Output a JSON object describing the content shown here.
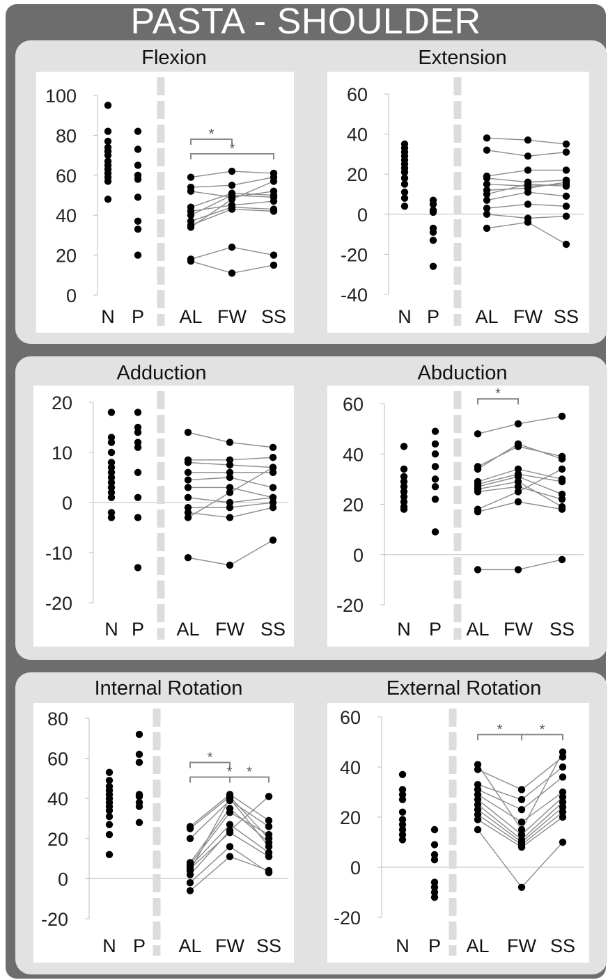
{
  "title": "PASTA - SHOULDER",
  "chart_data": [
    {
      "type": "scatter",
      "title": "Flexion",
      "ylim": [
        0,
        100
      ],
      "yticks": [
        100,
        80,
        60,
        40,
        20,
        0
      ],
      "categories": [
        "N",
        "P",
        "AL",
        "FW",
        "SS"
      ],
      "groups": {
        "N": [
          95,
          82,
          77,
          74,
          72,
          70,
          67,
          65,
          63,
          61,
          59,
          57,
          48
        ],
        "P": [
          82,
          73,
          65,
          60,
          58,
          49,
          37,
          33,
          20
        ]
      },
      "paired": [
        [
          59,
          62,
          61
        ],
        [
          54,
          55,
          59
        ],
        [
          52,
          49,
          52
        ],
        [
          44,
          51,
          50
        ],
        [
          42,
          45,
          47
        ],
        [
          40,
          50,
          49
        ],
        [
          37,
          44,
          43
        ],
        [
          35,
          43,
          42
        ],
        [
          34,
          48,
          57
        ],
        [
          18,
          24,
          20
        ],
        [
          17,
          11,
          15
        ]
      ],
      "significance": [
        {
          "from": "AL",
          "to": "FW",
          "label": "*"
        },
        {
          "from": "AL",
          "to": "SS",
          "label": "*"
        }
      ]
    },
    {
      "type": "scatter",
      "title": "Extension",
      "ylim": [
        -40,
        60
      ],
      "yticks": [
        60,
        40,
        20,
        0,
        -20,
        -40
      ],
      "zero_line": true,
      "categories": [
        "N",
        "P",
        "AL",
        "FW",
        "SS"
      ],
      "groups": {
        "N": [
          35,
          33,
          31,
          29,
          27,
          25,
          23,
          21,
          18,
          15,
          11,
          8,
          4
        ],
        "P": [
          7,
          5,
          2,
          1,
          -7,
          -9,
          -13,
          -26
        ]
      },
      "paired": [
        [
          38,
          37,
          35
        ],
        [
          32,
          29,
          31
        ],
        [
          19,
          22,
          22
        ],
        [
          18,
          16,
          17
        ],
        [
          15,
          14,
          15
        ],
        [
          12,
          13,
          16
        ],
        [
          10,
          15,
          14
        ],
        [
          7,
          11,
          9
        ],
        [
          3,
          5,
          4
        ],
        [
          0,
          -2,
          -1
        ],
        [
          -7,
          -4,
          -15
        ]
      ],
      "significance": []
    },
    {
      "type": "scatter",
      "title": "Adduction",
      "ylim": [
        -20,
        20
      ],
      "yticks": [
        20,
        10,
        0,
        -10,
        -20
      ],
      "zero_line": true,
      "categories": [
        "N",
        "P",
        "AL",
        "FW",
        "SS"
      ],
      "groups": {
        "N": [
          18,
          13,
          12,
          10,
          8,
          7,
          6,
          5,
          4,
          3,
          2,
          1,
          -2,
          -3
        ],
        "P": [
          18,
          15,
          14,
          12,
          11,
          6,
          1,
          -3,
          -13
        ]
      },
      "paired": [
        [
          14,
          12,
          11
        ],
        [
          8.5,
          8.5,
          9
        ],
        [
          8,
          7.5,
          7
        ],
        [
          6,
          6,
          6
        ],
        [
          4.5,
          5,
          3
        ],
        [
          3,
          3,
          1
        ],
        [
          1,
          0,
          1
        ],
        [
          -1,
          -1,
          0
        ],
        [
          -2,
          -3,
          -1
        ],
        [
          -3,
          2,
          7
        ],
        [
          -11,
          -12.5,
          -7.5
        ]
      ],
      "significance": []
    },
    {
      "type": "scatter",
      "title": "Abduction",
      "ylim": [
        -20,
        60
      ],
      "yticks": [
        60,
        40,
        20,
        0,
        -20
      ],
      "zero_line": true,
      "categories": [
        "N",
        "P",
        "AL",
        "FW",
        "SS"
      ],
      "groups": {
        "N": [
          43,
          34,
          31,
          29,
          27,
          25,
          23,
          21,
          19,
          18
        ],
        "P": [
          49,
          44,
          40,
          35,
          30,
          27,
          22,
          9
        ]
      },
      "paired": [
        [
          48,
          52,
          55
        ],
        [
          35,
          43,
          39
        ],
        [
          34,
          44,
          38
        ],
        [
          29,
          34,
          30
        ],
        [
          28,
          32,
          29
        ],
        [
          27,
          31,
          24
        ],
        [
          26,
          29,
          19
        ],
        [
          25,
          27,
          22
        ],
        [
          18,
          25,
          34
        ],
        [
          17,
          21,
          18
        ],
        [
          -6,
          -6,
          -2
        ]
      ],
      "significance": [
        {
          "from": "AL",
          "to": "FW",
          "label": "*"
        }
      ]
    },
    {
      "type": "scatter",
      "title": "Internal Rotation",
      "ylim": [
        -20,
        80
      ],
      "yticks": [
        80,
        60,
        40,
        20,
        0,
        -20
      ],
      "zero_line": true,
      "categories": [
        "N",
        "P",
        "AL",
        "FW",
        "SS"
      ],
      "groups": {
        "N": [
          53,
          49,
          46,
          44,
          42,
          40,
          38,
          36,
          34,
          31,
          27,
          22,
          12
        ],
        "P": [
          72,
          62,
          58,
          42,
          41,
          38,
          36,
          28
        ]
      },
      "paired": [
        [
          26,
          42,
          29
        ],
        [
          25,
          41,
          20
        ],
        [
          20,
          39,
          26
        ],
        [
          8,
          35,
          18
        ],
        [
          7,
          33,
          22
        ],
        [
          6,
          27,
          13
        ],
        [
          5,
          23,
          11
        ],
        [
          4,
          40,
          16
        ],
        [
          2,
          24,
          41
        ],
        [
          -2,
          16,
          3
        ],
        [
          -6,
          11,
          4
        ]
      ],
      "significance": [
        {
          "from": "AL",
          "to": "FW",
          "label": "*"
        },
        {
          "from": "FW",
          "to": "SS",
          "label": "*"
        },
        {
          "from": "AL",
          "to": "SS",
          "label": "*"
        }
      ]
    },
    {
      "type": "scatter",
      "title": "External Rotation",
      "ylim": [
        -20,
        60
      ],
      "yticks": [
        60,
        40,
        20,
        0,
        -20
      ],
      "zero_line": true,
      "categories": [
        "N",
        "P",
        "AL",
        "FW",
        "SS"
      ],
      "groups": {
        "N": [
          37,
          31,
          29,
          27,
          22,
          19,
          17,
          15,
          13,
          11
        ],
        "P": [
          15,
          9,
          5,
          3,
          -6,
          -8,
          -10,
          -12
        ]
      },
      "paired": [
        [
          41,
          15,
          46
        ],
        [
          39,
          31,
          44
        ],
        [
          33,
          27,
          40
        ],
        [
          31,
          23,
          36
        ],
        [
          29,
          18,
          30
        ],
        [
          27,
          13,
          28
        ],
        [
          25,
          11,
          26
        ],
        [
          23,
          10,
          24
        ],
        [
          21,
          9,
          22
        ],
        [
          19,
          8,
          20
        ],
        [
          15,
          -8,
          10
        ]
      ],
      "significance": [
        {
          "from": "AL",
          "to": "FW",
          "label": "*"
        },
        {
          "from": "FW",
          "to": "SS",
          "label": "*"
        }
      ]
    }
  ]
}
